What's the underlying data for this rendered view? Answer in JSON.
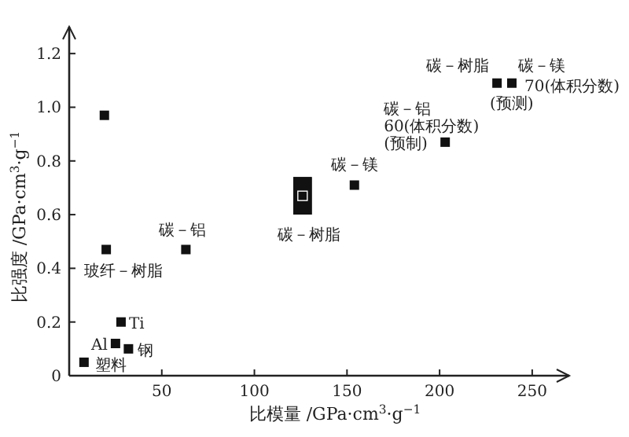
{
  "chart_data": {
    "type": "scatter",
    "xlabel": "比模量 /GPa·cm$^{3}$·g$^{−1}$",
    "ylabel": "比强度 /GPa·cm$^{3}$·g$^{−1}$",
    "xlim": [
      0,
      270
    ],
    "ylim": [
      0,
      1.3
    ],
    "xticks": [
      50,
      100,
      150,
      200,
      250
    ],
    "yticks": [
      0,
      0.2,
      0.4,
      0.6,
      0.8,
      {
        "value": 1,
        "label": "1.0"
      },
      1.2
    ],
    "marker": "square",
    "grid": false,
    "series": [
      {
        "color": "#111111",
        "x": [
          19,
          20,
          63,
          28,
          25,
          32,
          8,
          126,
          154,
          203,
          231,
          239
        ],
        "values": [
          0.97,
          0.47,
          0.47,
          0.2,
          0.12,
          0.1,
          0.05,
          0.67,
          0.71,
          0.87,
          1.09,
          1.09
        ],
        "xerrors": [
          null,
          null,
          null,
          null,
          null,
          null,
          null,
          5,
          null,
          null,
          null,
          null
        ],
        "errors": [
          null,
          null,
          null,
          null,
          null,
          null,
          null,
          0.07,
          null,
          null,
          null,
          null
        ]
      }
    ],
    "annotations": [
      {
        "text": "玻纤－树脂",
        "x": 20,
        "y": 0.47
      },
      {
        "text": "碳－铝",
        "x": 63,
        "y": 0.47
      },
      {
        "text": "Ti",
        "x": 28,
        "y": 0.2
      },
      {
        "text": "Al",
        "x": 25,
        "y": 0.12
      },
      {
        "text": "钢",
        "x": 32,
        "y": 0.1
      },
      {
        "text": "塑料",
        "x": 8,
        "y": 0.05
      },
      {
        "text": "碳－树脂",
        "x": 126,
        "y": 0.6
      },
      {
        "text": "碳－镁",
        "x": 154,
        "y": 0.71
      },
      {
        "text": "碳－铝\n60(体积分数)\n(预制)",
        "x": 203,
        "y": 0.87
      },
      {
        "text": "碳－树脂",
        "x": 231,
        "y": 1.09
      },
      {
        "text": "碳－镁",
        "x": 239,
        "y": 1.09
      },
      {
        "text": "70(体积分数)",
        "x": 239,
        "y": 1.09
      },
      {
        "text": "(预测)",
        "x": 239,
        "y": 1.09
      }
    ]
  }
}
